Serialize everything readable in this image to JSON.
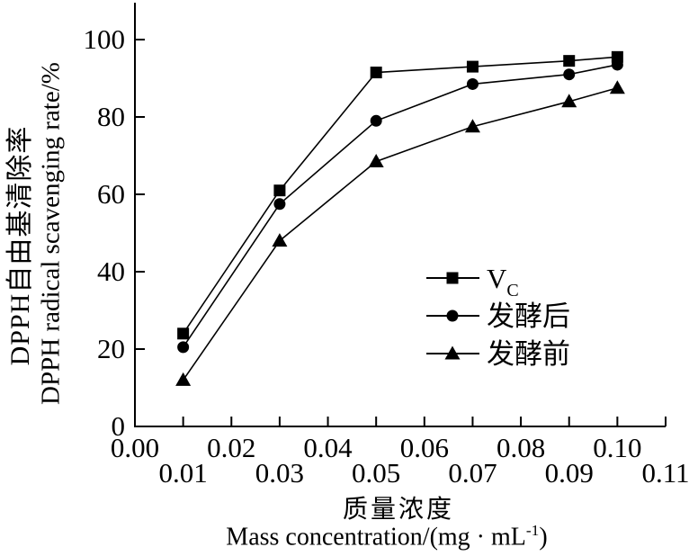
{
  "chart_data": {
    "type": "line",
    "title": "",
    "x": [
      0.01,
      0.03,
      0.05,
      0.07,
      0.09,
      0.1
    ],
    "series": [
      {
        "name": "VC",
        "label_main": "V",
        "label_sub": "C",
        "marker": "square",
        "values": [
          24,
          61,
          91.5,
          93,
          94.5,
          95.5
        ]
      },
      {
        "name": "发酵后",
        "label_main": "发酵后",
        "label_sub": "",
        "marker": "circle",
        "values": [
          20.5,
          57.5,
          79,
          88.5,
          91,
          93.5
        ]
      },
      {
        "name": "发酵前",
        "label_main": "发酵前",
        "label_sub": "",
        "marker": "triangle",
        "values": [
          12,
          48,
          68.5,
          77.5,
          84,
          87.5
        ]
      }
    ],
    "xlim": [
      0,
      0.11
    ],
    "ylim": [
      0,
      100
    ],
    "grid": false,
    "legend_position": "inside-right",
    "y_ticks": [
      {
        "v": 0,
        "label": "0"
      },
      {
        "v": 20,
        "label": "20"
      },
      {
        "v": 40,
        "label": "40"
      },
      {
        "v": 60,
        "label": "60"
      },
      {
        "v": 80,
        "label": "80"
      },
      {
        "v": 100,
        "label": "100"
      }
    ],
    "x_minor_ticks": [
      0.01,
      0.02,
      0.03,
      0.04,
      0.05,
      0.06,
      0.07,
      0.08,
      0.09,
      0.1,
      0.11
    ],
    "x_tick_labels_top": [
      {
        "v": 0.0,
        "label": "0.00"
      },
      {
        "v": 0.02,
        "label": "0.02"
      },
      {
        "v": 0.04,
        "label": "0.04"
      },
      {
        "v": 0.06,
        "label": "0.06"
      },
      {
        "v": 0.08,
        "label": "0.08"
      },
      {
        "v": 0.1,
        "label": "0.10"
      }
    ],
    "x_tick_labels_bottom": [
      {
        "v": 0.01,
        "label": "0.01"
      },
      {
        "v": 0.03,
        "label": "0.03"
      },
      {
        "v": 0.05,
        "label": "0.05"
      },
      {
        "v": 0.07,
        "label": "0.07"
      },
      {
        "v": 0.09,
        "label": "0.09"
      },
      {
        "v": 0.11,
        "label": "0.11"
      }
    ],
    "ylabel_zh": "DPPH自由基清除率",
    "ylabel_en": "DPPH radical scavenging rate/%",
    "xlabel_zh": "质量浓度",
    "xlabel_en_prefix": "Mass concentration/(mg · mL",
    "xlabel_en_sup": "-1",
    "xlabel_en_suffix": ")",
    "colors": {
      "axis": "#000000",
      "line": "#000000",
      "marker": "#000000",
      "text": "#000000",
      "background": "#ffffff"
    }
  }
}
